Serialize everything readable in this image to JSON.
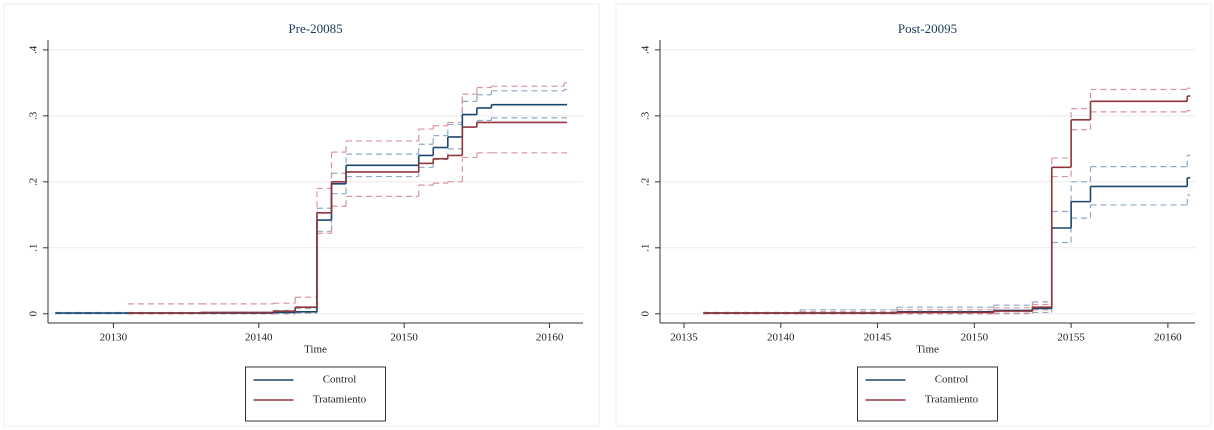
{
  "chart_data": [
    {
      "type": "step",
      "title": "Pre-20085",
      "x_label": "Time",
      "x": [
        20126,
        20131,
        20136,
        20141,
        20142.5,
        20144,
        20145,
        20146,
        20151,
        20152,
        20153,
        20154,
        20155,
        20156,
        20161
      ],
      "series": [
        {
          "name": "Control",
          "color": "#1a476f",
          "ci_color": "#8fa9c7",
          "values": [
            0.001,
            0.001,
            0.001,
            0.002,
            0.003,
            0.142,
            0.197,
            0.225,
            0.24,
            0.252,
            0.268,
            0.302,
            0.312,
            0.317,
            0.317
          ],
          "ci_upper": [
            0.002,
            0.002,
            0.002,
            0.005,
            0.008,
            0.16,
            0.213,
            0.242,
            0.257,
            0.27,
            0.287,
            0.322,
            0.332,
            0.338,
            0.34
          ],
          "ci_lower": [
            0,
            0,
            0,
            0,
            0.001,
            0.125,
            0.182,
            0.208,
            0.222,
            0.234,
            0.25,
            0.283,
            0.293,
            0.297,
            0.297
          ]
        },
        {
          "name": "Tratamiento",
          "color": "#90353b",
          "ci_color": "#d9959b",
          "values": [
            null,
            0.001,
            0.002,
            0.004,
            0.01,
            0.153,
            0.2,
            0.215,
            0.228,
            0.235,
            0.24,
            0.283,
            0.29,
            0.29,
            0.29
          ],
          "ci_upper": [
            null,
            0.015,
            0.015,
            0.016,
            0.025,
            0.19,
            0.245,
            0.262,
            0.28,
            0.285,
            0.29,
            0.333,
            0.343,
            0.345,
            0.35
          ],
          "ci_lower": [
            null,
            0,
            0,
            0,
            0.002,
            0.122,
            0.163,
            0.178,
            0.195,
            0.198,
            0.2,
            0.237,
            0.244,
            0.244,
            0.244
          ]
        }
      ],
      "xlim": [
        20125.5,
        20162.3
      ],
      "xticks": [
        20130,
        20140,
        20150,
        20160
      ],
      "ylim": [
        -0.014,
        0.415
      ],
      "yticks": [
        0,
        {
          "value": 0.1,
          "label": ".1"
        },
        {
          "value": 0.2,
          "label": ".2"
        },
        {
          "value": 0.3,
          "label": ".3"
        },
        {
          "value": 0.4,
          "label": ".4"
        }
      ],
      "grid": true
    },
    {
      "type": "step",
      "title": "Post-20095",
      "x_label": "Time",
      "x": [
        20136,
        20141,
        20146,
        20151,
        20153,
        20154,
        20155,
        20156,
        20161
      ],
      "series": [
        {
          "name": "Control",
          "color": "#1a476f",
          "ci_color": "#8fa9c7",
          "values": [
            0.001,
            0.001,
            0.003,
            0.005,
            0.008,
            0.13,
            0.17,
            0.193,
            0.206
          ],
          "ci_upper": [
            0.002,
            0.006,
            0.01,
            0.013,
            0.018,
            0.155,
            0.2,
            0.223,
            0.24
          ],
          "ci_lower": [
            0,
            0,
            0,
            0,
            0.002,
            0.108,
            0.145,
            0.165,
            0.18
          ]
        },
        {
          "name": "Tratamiento",
          "color": "#90353b",
          "ci_color": "#d9959b",
          "values": [
            0.001,
            0.001,
            0.002,
            0.004,
            0.01,
            0.222,
            0.294,
            0.322,
            0.33
          ],
          "ci_upper": [
            0.002,
            0.003,
            0.006,
            0.009,
            0.014,
            0.236,
            0.311,
            0.34,
            0.342
          ],
          "ci_lower": [
            0,
            0,
            0,
            0.001,
            0.006,
            0.208,
            0.279,
            0.306,
            0.308
          ]
        }
      ],
      "xlim": [
        20133.76,
        20161.4
      ],
      "xticks": [
        20135,
        20140,
        20145,
        20150,
        20155,
        20160
      ],
      "ylim": [
        -0.014,
        0.415
      ],
      "yticks": [
        0,
        {
          "value": 0.1,
          "label": ".1"
        },
        {
          "value": 0.2,
          "label": ".2"
        },
        {
          "value": 0.3,
          "label": ".3"
        },
        {
          "value": 0.4,
          "label": ".4"
        }
      ],
      "grid": true
    }
  ]
}
